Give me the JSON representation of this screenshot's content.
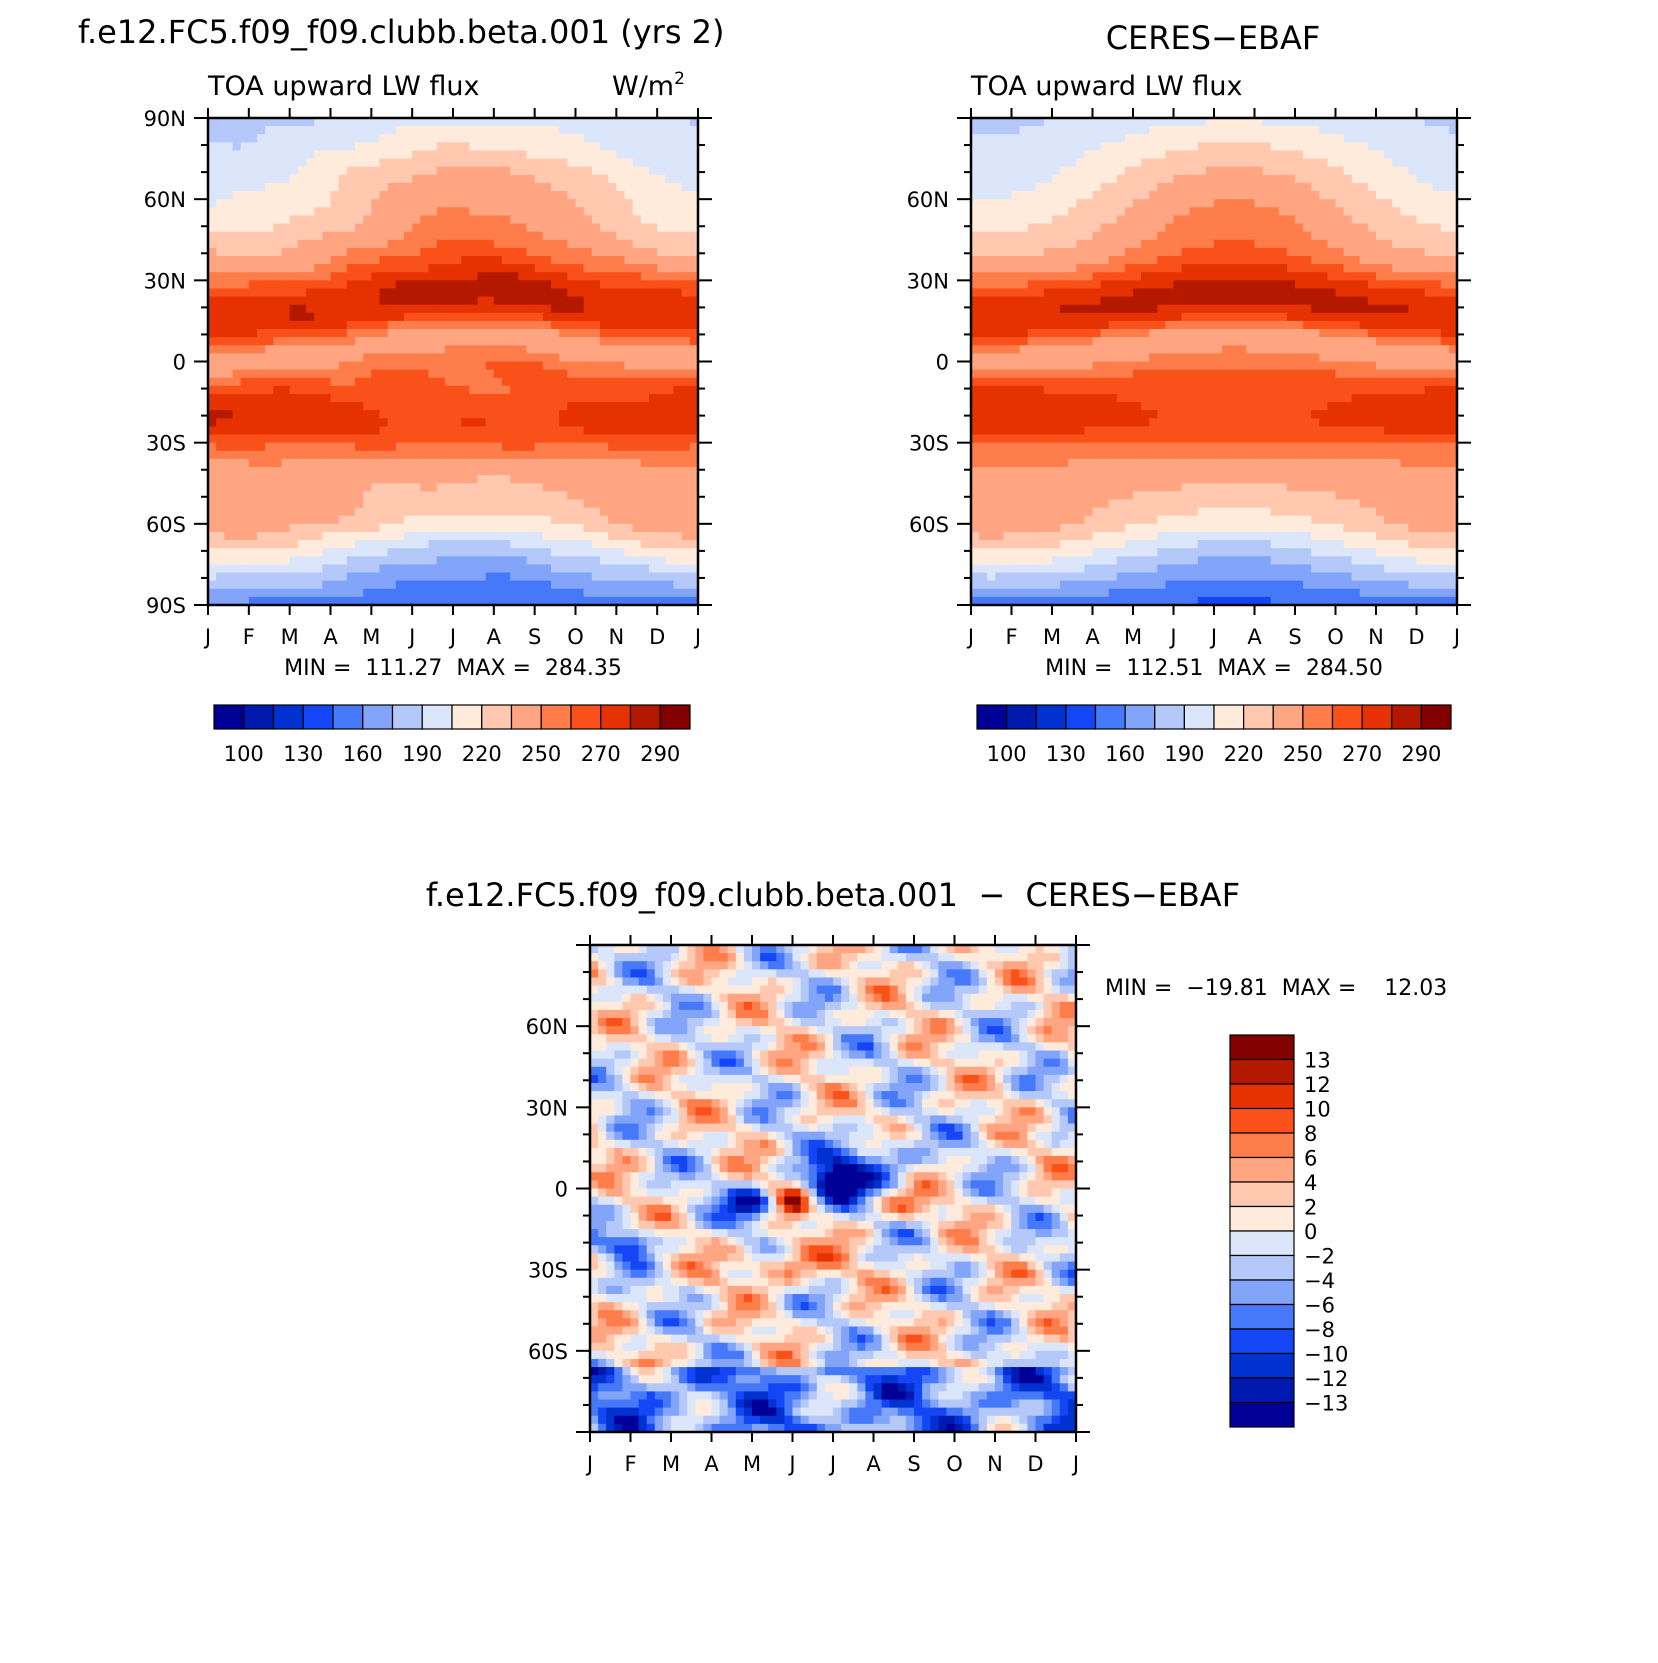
{
  "months": [
    "J",
    "F",
    "M",
    "A",
    "M",
    "J",
    "J",
    "A",
    "S",
    "O",
    "N",
    "D",
    "J"
  ],
  "seq_colors": [
    "#000096",
    "#0019AF",
    "#0032D2",
    "#1446F5",
    "#4678FA",
    "#82A5FA",
    "#B4C8FA",
    "#DCE6FA",
    "#FFEBDC",
    "#FFC8AF",
    "#FFA582",
    "#FF7D4B",
    "#FA5019",
    "#E63200",
    "#B41900",
    "#820000"
  ],
  "seq_labels": [
    "100",
    "130",
    "160",
    "190",
    "220",
    "250",
    "270",
    "290"
  ],
  "diff_colors": [
    "#000096",
    "#0019AF",
    "#0032D2",
    "#1446F5",
    "#4678FA",
    "#82A5FA",
    "#B4C8FA",
    "#DCE6FA",
    "#FFEBDC",
    "#FFC8AF",
    "#FFA582",
    "#FF7D4B",
    "#FA5019",
    "#E63200",
    "#B41900",
    "#820000"
  ],
  "diff_labels": [
    "13",
    "12",
    "10",
    "8",
    "6",
    "4",
    "2",
    "0",
    "−2",
    "−4",
    "−6",
    "−8",
    "−10",
    "−12",
    "−13"
  ],
  "chart_data": [
    {
      "type": "heatmap",
      "title": "f.e12.FC5.f09_f09.clubb.beta.001 (yrs 2)",
      "subtitle_left": "TOA upward LW flux",
      "units": "W/m",
      "units_sup": "2",
      "x": [
        "J",
        "F",
        "M",
        "A",
        "M",
        "J",
        "J",
        "A",
        "S",
        "O",
        "N",
        "D",
        "J"
      ],
      "y_ticks": [
        "90N",
        "60N",
        "30N",
        "0",
        "30S",
        "60S",
        "90S"
      ],
      "min": "111.27",
      "max": "284.35",
      "minmax_text": "MIN =  111.27  MAX =  284.35",
      "colorbar_labels": [
        "100",
        "130",
        "160",
        "190",
        "220",
        "250",
        "270",
        "290"
      ]
    },
    {
      "type": "heatmap",
      "title": "CERES−EBAF",
      "subtitle_left": "TOA upward LW flux",
      "x": [
        "J",
        "F",
        "M",
        "A",
        "M",
        "J",
        "J",
        "A",
        "S",
        "O",
        "N",
        "D",
        "J"
      ],
      "y_ticks": [
        "60N",
        "30N",
        "0",
        "30S",
        "60S"
      ],
      "min": "112.51",
      "max": "284.50",
      "minmax_text": "MIN =  112.51  MAX =  284.50",
      "colorbar_labels": [
        "100",
        "130",
        "160",
        "190",
        "220",
        "250",
        "270",
        "290"
      ]
    },
    {
      "type": "heatmap",
      "title": "f.e12.FC5.f09_f09.clubb.beta.001  −  CERES−EBAF",
      "x": [
        "J",
        "F",
        "M",
        "A",
        "M",
        "J",
        "J",
        "A",
        "S",
        "O",
        "N",
        "D",
        "J"
      ],
      "y_ticks": [
        "60N",
        "30N",
        "0",
        "30S",
        "60S"
      ],
      "min": "−19.81",
      "max": "12.03",
      "minmax_text": "MIN =  −19.81  MAX =    12.03",
      "colorbar_labels": [
        "13",
        "12",
        "10",
        "8",
        "6",
        "4",
        "2",
        "0",
        "−2",
        "−4",
        "−6",
        "−8",
        "−10",
        "−12",
        "−13"
      ]
    }
  ]
}
